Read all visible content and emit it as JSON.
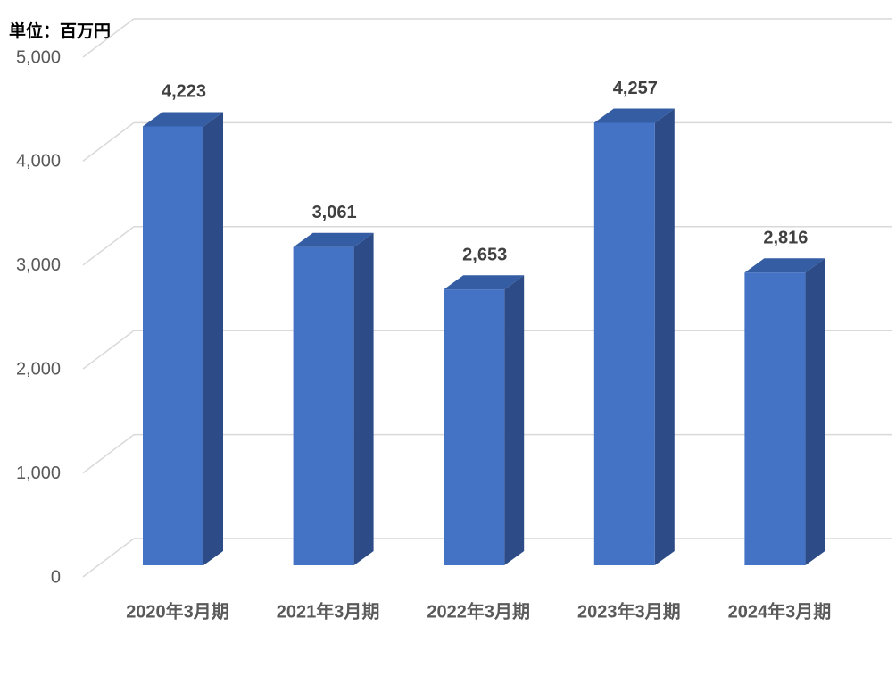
{
  "chart_data": {
    "type": "bar3d",
    "y_label": "単位：百万円",
    "categories": [
      "2020年3月期",
      "2021年3月期",
      "2022年3月期",
      "2023年3月期",
      "2024年3月期"
    ],
    "values": [
      4223,
      3061,
      2653,
      4257,
      2816
    ],
    "value_labels": [
      "4,223",
      "3,061",
      "2,653",
      "4,257",
      "2,816"
    ],
    "color": "#4472c4",
    "ylim": [
      0,
      5000
    ],
    "yticks": [
      0,
      {
        "value": 1000,
        "label": "1,000"
      },
      {
        "value": 2000,
        "label": "2,000"
      },
      {
        "value": 3000,
        "label": "3,000"
      },
      {
        "value": 4000,
        "label": "4,000"
      },
      {
        "value": 5000,
        "label": "5,000"
      }
    ],
    "grid": true
  }
}
